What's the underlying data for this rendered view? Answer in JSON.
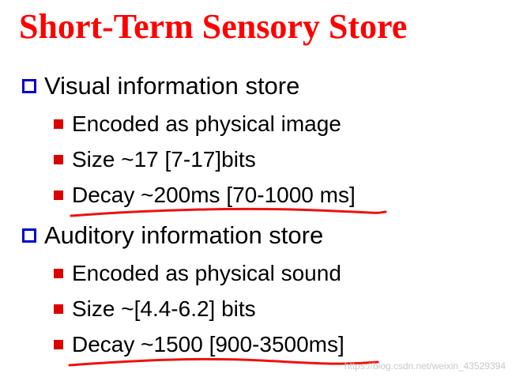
{
  "title": "Short-Term Sensory Store",
  "sections": [
    {
      "heading": "Visual information store",
      "items": [
        "Encoded as physical image",
        "Size ~17 [7-17]bits",
        "Decay ~200ms [70-1000 ms]"
      ]
    },
    {
      "heading": "Auditory information store",
      "items": [
        "Encoded as physical sound",
        "Size ~[4.4-6.2] bits",
        "Decay ~1500 [900-3500ms]"
      ]
    }
  ],
  "watermark": "https://blog.csdn.net/weixin_43529394",
  "colors": {
    "title": "#ff0000",
    "level1_bullet": "#0000cc",
    "level2_bullet": "#dd0000",
    "handwritten_underline": "#ee1111"
  }
}
